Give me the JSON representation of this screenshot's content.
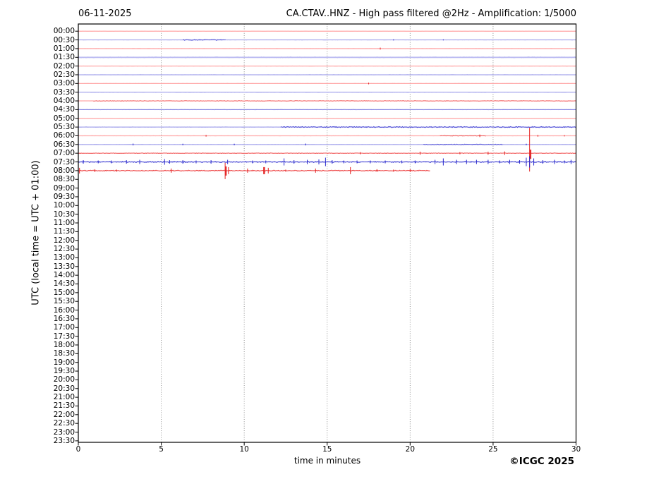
{
  "header": {
    "date": "06-11-2025",
    "title": "CA.CTAV..HNZ - High pass filtered @2Hz - Amplification: 1/5000"
  },
  "axes": {
    "ylabel": "UTC (local time = UTC + 01:00)",
    "xlabel": "time in minutes",
    "x_ticks": [
      0,
      5,
      10,
      15,
      20,
      25,
      30
    ],
    "x_gridlines": [
      5,
      10,
      15,
      20,
      25
    ],
    "xlim": [
      0,
      30
    ]
  },
  "footer": {
    "copyright": "©ICGC 2025"
  },
  "colors": {
    "red_base": "#ffa8a8",
    "red_dark": "#e32222",
    "blue_base": "#a6a6ec",
    "blue_dark": "#2626cc",
    "lavender": "#bdbdf2",
    "grid": "#858585",
    "frame": "#000000"
  },
  "chart_data": {
    "type": "line",
    "subtype": "helicorder",
    "minutes_per_row": 30,
    "xlim": [
      0,
      30
    ],
    "rows": [
      {
        "label": "00:00",
        "trace": {
          "color": "red",
          "base_amp": 0.25
        }
      },
      {
        "label": "00:30",
        "trace": {
          "color": "blue",
          "base_amp": 0.25,
          "dark": [
            {
              "s": 6.3,
              "e": 8.9,
              "a": 0.8,
              "op": 0.8
            }
          ],
          "spikes": [
            {
              "m": 19.0,
              "a": 0.8
            },
            {
              "m": 22.0,
              "a": 0.7
            }
          ]
        }
      },
      {
        "label": "01:00",
        "trace": {
          "color": "red",
          "base_amp": 0.25,
          "spikes": [
            {
              "m": 18.2,
              "a": 1.4
            }
          ]
        }
      },
      {
        "label": "01:30",
        "trace": {
          "color": "blue",
          "tone": "light",
          "base_amp": 0.9
        }
      },
      {
        "label": "02:00",
        "trace": {
          "color": "red",
          "base_amp": 0.3
        }
      },
      {
        "label": "02:30",
        "trace": {
          "color": "blue",
          "base_amp": 0.3
        }
      },
      {
        "label": "03:00",
        "trace": {
          "color": "red",
          "base_amp": 0.25,
          "spikes": [
            {
              "m": 17.5,
              "a": 1.2
            }
          ]
        }
      },
      {
        "label": "03:30",
        "trace": {
          "color": "blue",
          "base_amp": 0.3
        }
      },
      {
        "label": "04:00",
        "trace": {
          "color": "red",
          "base_amp": 0.3,
          "dark": [
            {
              "s": 0.9,
              "e": 30,
              "a": 0.55,
              "op": 0.5
            }
          ]
        }
      },
      {
        "label": "04:30",
        "trace": {
          "color": "blue",
          "base_amp": 0.3,
          "dark": [
            {
              "s": 0,
              "e": 30,
              "a": 0.35,
              "op": 0.35
            }
          ]
        }
      },
      {
        "label": "05:00",
        "trace": {
          "color": "red",
          "base_amp": 0.3
        }
      },
      {
        "label": "05:30",
        "trace": {
          "color": "blue",
          "base_amp": 0.45,
          "dark": [
            {
              "s": 12.2,
              "e": 30,
              "a": 0.85,
              "op": 0.85
            }
          ]
        }
      },
      {
        "label": "06:00",
        "trace": {
          "color": "red",
          "base_amp": 0.3,
          "dark": [
            {
              "s": 21.8,
              "e": 24.6,
              "a": 0.6,
              "op": 0.7
            }
          ],
          "spikes": [
            {
              "m": 7.7,
              "a": 1.2
            },
            {
              "m": 24.2,
              "a": 1.8
            },
            {
              "m": 27.7,
              "a": 1.3
            },
            {
              "m": 29.3,
              "a": 0.9
            }
          ]
        }
      },
      {
        "label": "06:30",
        "trace": {
          "color": "blue",
          "base_amp": 0.35,
          "dark": [
            {
              "s": 20.8,
              "e": 25.6,
              "a": 0.7,
              "op": 0.75
            }
          ],
          "spikes": [
            {
              "m": 3.3,
              "a": 1.3
            },
            {
              "m": 6.3,
              "a": 1.1
            },
            {
              "m": 9.4,
              "a": 1.1
            },
            {
              "m": 13.7,
              "a": 1.3
            },
            {
              "m": 27.0,
              "a": 1.1
            }
          ]
        }
      },
      {
        "label": "07:00",
        "trace": {
          "color": "red",
          "base_amp": 0.4,
          "dark": [
            {
              "s": 0,
              "e": 30,
              "a": 0.5,
              "op": 0.65
            }
          ],
          "spikes": [
            {
              "m": 17.0,
              "a": 1.5
            },
            {
              "m": 20.6,
              "a": 2.2
            },
            {
              "m": 23.0,
              "a": 1.5
            },
            {
              "m": 24.7,
              "a": 2.2
            },
            {
              "m": 25.7,
              "a": 2.5
            },
            {
              "m": 27.2,
              "a": 36,
              "d": 26
            },
            {
              "m": 27.25,
              "a": 5,
              "d": 8,
              "w": 2.5
            }
          ]
        }
      },
      {
        "label": "07:30",
        "trace": {
          "color": "blue",
          "base_amp": 0.5,
          "dark": [
            {
              "s": 0,
              "e": 30,
              "a": 1.0,
              "op": 0.9
            }
          ],
          "spikes": [
            {
              "m": 0.3,
              "a": 2.5
            },
            {
              "m": 1.2,
              "a": 2
            },
            {
              "m": 2.0,
              "a": 2
            },
            {
              "m": 2.9,
              "a": 2.5
            },
            {
              "m": 3.7,
              "a": 3
            },
            {
              "m": 5.2,
              "a": 4
            },
            {
              "m": 5.5,
              "a": 2.5
            },
            {
              "m": 6.3,
              "a": 2.5
            },
            {
              "m": 7.1,
              "a": 2
            },
            {
              "m": 8.0,
              "a": 2.5
            },
            {
              "m": 9.0,
              "a": 3
            },
            {
              "m": 10.5,
              "a": 2
            },
            {
              "m": 11.3,
              "a": 2
            },
            {
              "m": 12.4,
              "a": 5
            },
            {
              "m": 13.0,
              "a": 2.5
            },
            {
              "m": 13.8,
              "a": 3
            },
            {
              "m": 14.5,
              "a": 3.5
            },
            {
              "m": 14.9,
              "a": 6
            },
            {
              "m": 15.3,
              "a": 2.5
            },
            {
              "m": 16.0,
              "a": 2
            },
            {
              "m": 16.8,
              "a": 2
            },
            {
              "m": 17.6,
              "a": 2
            },
            {
              "m": 18.5,
              "a": 2
            },
            {
              "m": 19.5,
              "a": 2
            },
            {
              "m": 20.3,
              "a": 2
            },
            {
              "m": 21.5,
              "a": 3
            },
            {
              "m": 22.0,
              "a": 5
            },
            {
              "m": 22.8,
              "a": 3
            },
            {
              "m": 23.4,
              "a": 3
            },
            {
              "m": 24.0,
              "a": 3
            },
            {
              "m": 24.7,
              "a": 3
            },
            {
              "m": 25.4,
              "a": 2
            },
            {
              "m": 26.0,
              "a": 3
            },
            {
              "m": 26.6,
              "a": 2.5
            },
            {
              "m": 27.0,
              "a": 6
            },
            {
              "m": 27.2,
              "a": 8
            },
            {
              "m": 27.45,
              "a": 5
            },
            {
              "m": 28.0,
              "a": 2.5
            },
            {
              "m": 28.7,
              "a": 3
            },
            {
              "m": 29.3,
              "a": 2
            },
            {
              "m": 29.7,
              "a": 3
            }
          ]
        }
      },
      {
        "label": "08:00",
        "trace": {
          "color": "red",
          "base_amp": 0.5,
          "end": 21.2,
          "dark": [
            {
              "s": 0,
              "e": 21.2,
              "a": 0.8,
              "op": 0.85
            }
          ],
          "spikes": [
            {
              "m": 0.07,
              "a": 4
            },
            {
              "m": 1.0,
              "a": 2
            },
            {
              "m": 2.3,
              "a": 1.5
            },
            {
              "m": 5.6,
              "a": 3
            },
            {
              "m": 8.85,
              "a": 11,
              "d": 12
            },
            {
              "m": 8.9,
              "a": 6,
              "d": 7,
              "w": 2
            },
            {
              "m": 9.05,
              "a": 5
            },
            {
              "m": 10.2,
              "a": 3
            },
            {
              "m": 11.2,
              "a": 5,
              "d": 5,
              "w": 2.5
            },
            {
              "m": 11.45,
              "a": 4
            },
            {
              "m": 12.5,
              "a": 1.5
            },
            {
              "m": 14.3,
              "a": 3
            },
            {
              "m": 16.4,
              "a": 5
            },
            {
              "m": 18.0,
              "a": 2
            },
            {
              "m": 19.0,
              "a": 1.5
            },
            {
              "m": 20.0,
              "a": 2
            }
          ]
        }
      },
      {
        "label": "08:30",
        "trace": null
      },
      {
        "label": "09:00",
        "trace": null
      },
      {
        "label": "09:30",
        "trace": null
      },
      {
        "label": "10:00",
        "trace": null
      },
      {
        "label": "10:30",
        "trace": null
      },
      {
        "label": "11:00",
        "trace": null
      },
      {
        "label": "11:30",
        "trace": null
      },
      {
        "label": "12:00",
        "trace": null
      },
      {
        "label": "12:30",
        "trace": null
      },
      {
        "label": "13:00",
        "trace": null
      },
      {
        "label": "13:30",
        "trace": null
      },
      {
        "label": "14:00",
        "trace": null
      },
      {
        "label": "14:30",
        "trace": null
      },
      {
        "label": "15:00",
        "trace": null
      },
      {
        "label": "15:30",
        "trace": null
      },
      {
        "label": "16:00",
        "trace": null
      },
      {
        "label": "16:30",
        "trace": null
      },
      {
        "label": "17:00",
        "trace": null
      },
      {
        "label": "17:30",
        "trace": null
      },
      {
        "label": "18:00",
        "trace": null
      },
      {
        "label": "18:30",
        "trace": null
      },
      {
        "label": "19:00",
        "trace": null
      },
      {
        "label": "19:30",
        "trace": null
      },
      {
        "label": "20:00",
        "trace": null
      },
      {
        "label": "20:30",
        "trace": null
      },
      {
        "label": "21:00",
        "trace": null
      },
      {
        "label": "21:30",
        "trace": null
      },
      {
        "label": "22:00",
        "trace": null
      },
      {
        "label": "22:30",
        "trace": null
      },
      {
        "label": "23:00",
        "trace": null
      },
      {
        "label": "23:30",
        "trace": null
      }
    ]
  }
}
